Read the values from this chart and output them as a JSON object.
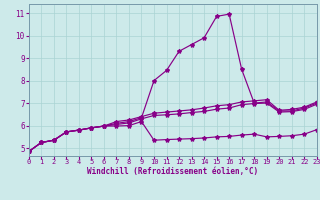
{
  "bg_color": "#cdeaea",
  "line_color": "#880088",
  "grid_color": "#aad4d4",
  "xlabel": "Windchill (Refroidissement éolien,°C)",
  "xlim": [
    0,
    23
  ],
  "ylim": [
    4.65,
    11.4
  ],
  "xticks": [
    0,
    1,
    2,
    3,
    4,
    5,
    6,
    7,
    8,
    9,
    10,
    11,
    12,
    13,
    14,
    15,
    16,
    17,
    18,
    19,
    20,
    21,
    22,
    23
  ],
  "yticks": [
    5,
    6,
    7,
    8,
    9,
    10,
    11
  ],
  "series": {
    "s1": [
      4.85,
      5.25,
      5.35,
      5.72,
      5.8,
      5.9,
      5.98,
      6.1,
      6.18,
      6.35,
      8.0,
      8.45,
      9.3,
      9.6,
      9.9,
      10.85,
      10.95,
      8.5,
      7.0,
      7.05,
      6.65,
      6.65,
      6.78,
      7.0
    ],
    "s2": [
      4.85,
      5.25,
      5.35,
      5.72,
      5.8,
      5.9,
      5.98,
      6.18,
      6.25,
      6.4,
      6.55,
      6.6,
      6.65,
      6.7,
      6.78,
      6.88,
      6.93,
      7.05,
      7.1,
      7.15,
      6.68,
      6.72,
      6.82,
      7.05
    ],
    "s3": [
      4.85,
      5.25,
      5.35,
      5.72,
      5.8,
      5.9,
      5.98,
      6.05,
      6.12,
      6.3,
      6.45,
      6.48,
      6.52,
      6.58,
      6.63,
      6.73,
      6.78,
      6.93,
      6.98,
      7.0,
      6.6,
      6.62,
      6.72,
      6.95
    ],
    "s4": [
      4.85,
      5.25,
      5.35,
      5.72,
      5.8,
      5.9,
      5.98,
      5.98,
      6.0,
      6.18,
      5.35,
      5.38,
      5.4,
      5.42,
      5.45,
      5.5,
      5.52,
      5.58,
      5.62,
      5.5,
      5.52,
      5.55,
      5.62,
      5.82
    ]
  }
}
